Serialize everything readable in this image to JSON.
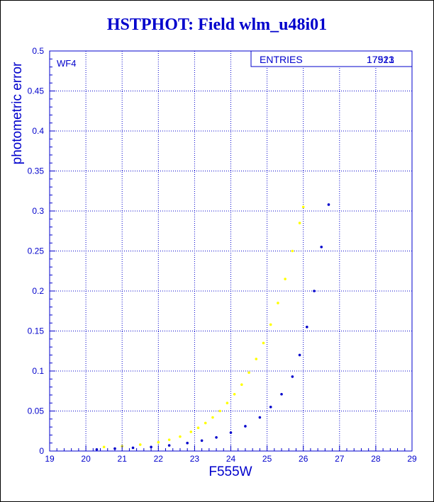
{
  "chart_data": {
    "type": "scatter",
    "title": "HSTPHOT: Field wlm_u48i01",
    "xlabel": "F555W",
    "ylabel": "photometric error",
    "xlim": [
      19,
      29
    ],
    "ylim": [
      0,
      0.5
    ],
    "xticks": [
      "19",
      "20",
      "21",
      "22",
      "23",
      "24",
      "25",
      "26",
      "27",
      "28",
      "29"
    ],
    "yticks": [
      "0",
      "0.05",
      "0.1",
      "0.15",
      "0.2",
      "0.25",
      "0.3",
      "0.35",
      "0.4",
      "0.45",
      "0.5"
    ],
    "grid": true,
    "panel_label": "WF4",
    "stats_box": {
      "label": "ENTRIES",
      "value_1": "17921",
      "value_2": "17513"
    },
    "series": [
      {
        "color": "#ffff00",
        "points": [
          [
            20.5,
            0.005
          ],
          [
            21.0,
            0.006
          ],
          [
            21.5,
            0.008
          ],
          [
            22.0,
            0.011
          ],
          [
            22.3,
            0.014
          ],
          [
            22.6,
            0.018
          ],
          [
            22.9,
            0.024
          ],
          [
            23.1,
            0.029
          ],
          [
            23.3,
            0.035
          ],
          [
            23.5,
            0.042
          ],
          [
            23.7,
            0.05
          ],
          [
            23.9,
            0.06
          ],
          [
            24.1,
            0.071
          ],
          [
            24.3,
            0.083
          ],
          [
            24.5,
            0.098
          ],
          [
            24.7,
            0.115
          ],
          [
            24.9,
            0.135
          ],
          [
            25.1,
            0.158
          ],
          [
            25.3,
            0.185
          ],
          [
            25.5,
            0.215
          ],
          [
            25.7,
            0.25
          ],
          [
            25.9,
            0.285
          ],
          [
            26.0,
            0.305
          ]
        ]
      },
      {
        "color": "#0000cc",
        "points": [
          [
            20.3,
            0.002
          ],
          [
            20.8,
            0.003
          ],
          [
            21.3,
            0.004
          ],
          [
            21.8,
            0.005
          ],
          [
            22.3,
            0.007
          ],
          [
            22.8,
            0.01
          ],
          [
            23.2,
            0.013
          ],
          [
            23.6,
            0.017
          ],
          [
            24.0,
            0.023
          ],
          [
            24.4,
            0.031
          ],
          [
            24.8,
            0.042
          ],
          [
            25.1,
            0.055
          ],
          [
            25.4,
            0.071
          ],
          [
            25.7,
            0.093
          ],
          [
            25.9,
            0.12
          ],
          [
            26.1,
            0.155
          ],
          [
            26.3,
            0.2
          ],
          [
            26.5,
            0.255
          ],
          [
            26.7,
            0.308
          ]
        ]
      }
    ]
  }
}
